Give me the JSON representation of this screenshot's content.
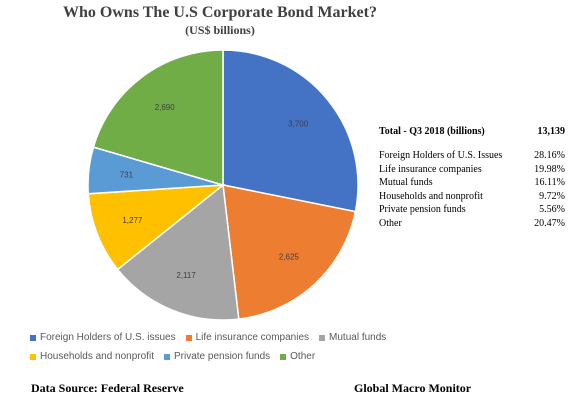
{
  "chart_data": {
    "type": "pie",
    "title": "Who Owns The U.S Corporate Bond Market?",
    "subtitle": "(US$ billions)",
    "categories": [
      "Foreign Holders of U.S. issues",
      "Life insurance companies",
      "Mutual funds",
      "Households and nonprofit",
      "Private pension funds",
      "Other"
    ],
    "values": [
      3700,
      2625,
      2117,
      1277,
      731,
      2690
    ],
    "value_labels": [
      "3,700",
      "2,625",
      "2,117",
      "1,277",
      "731",
      "2,690"
    ],
    "colors": [
      "#4472C4",
      "#ED7D31",
      "#A5A5A5",
      "#FFC000",
      "#5B9BD5",
      "#70AD47"
    ],
    "legend_position": "bottom"
  },
  "summary": {
    "header_label": "Total - Q3 2018 (billions)",
    "header_value": "13,139",
    "rows": [
      {
        "label": "Foreign Holders of U.S. Issues",
        "value": "28.16%"
      },
      {
        "label": "Life insurance companies",
        "value": "19.98%"
      },
      {
        "label": "Mutual funds",
        "value": "16.11%"
      },
      {
        "label": "Households and nonprofit",
        "value": "9.72%"
      },
      {
        "label": "Private pension funds",
        "value": "5.56%"
      },
      {
        "label": "Other",
        "value": "20.47%"
      }
    ]
  },
  "footer": {
    "source": "Data Source: Federal Reserve",
    "brand": "Global Macro Monitor"
  }
}
